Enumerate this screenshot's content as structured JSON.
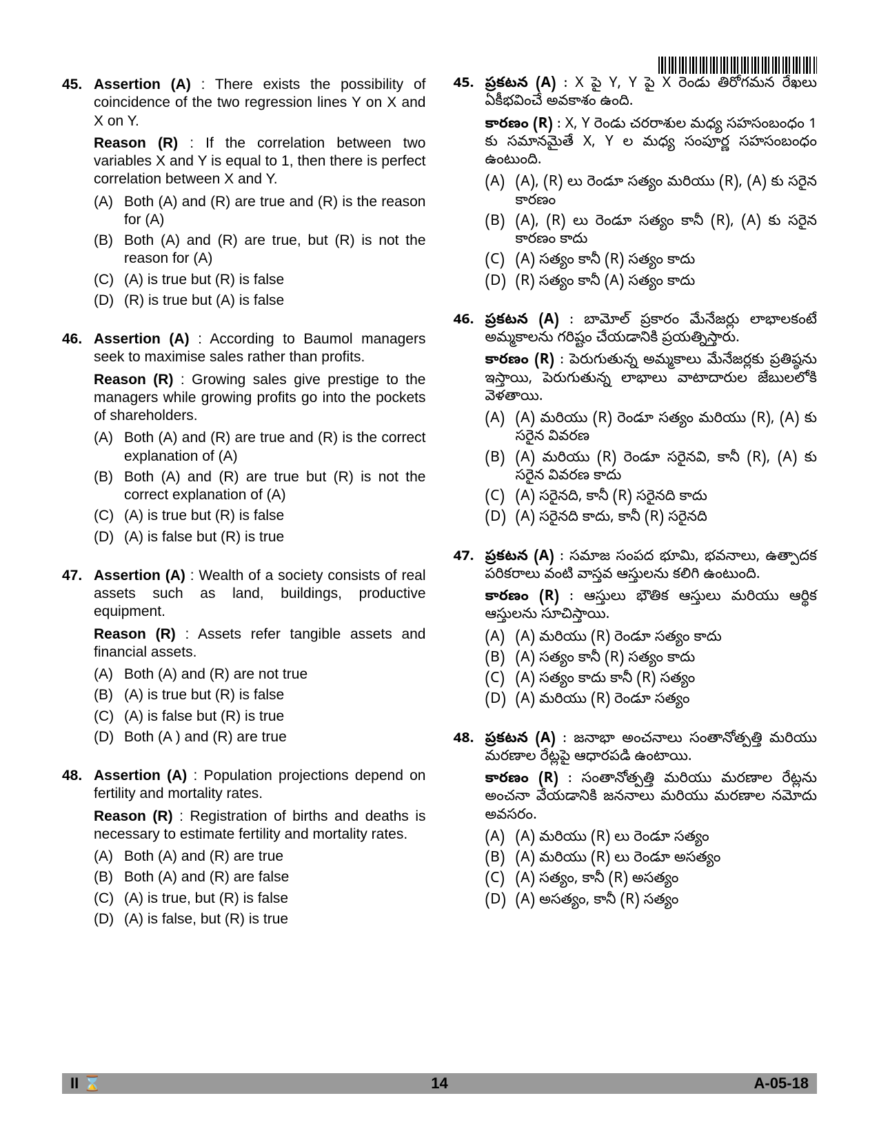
{
  "page": {
    "barcode_present": true,
    "page_number": "14",
    "footer_left": "II ⌛",
    "footer_right": "A-05-18",
    "background_color": "#ffffff",
    "text_color": "#000000",
    "footer_bg": "#9a9a9a",
    "font_size_pt": 16,
    "columns": 2
  },
  "left": [
    {
      "num": "45.",
      "assertion_label": "Assertion (A)",
      "assertion": " : There exists the possibility of coincidence of the two regression lines Y on X and X on Y.",
      "reason_label": "Reason (R)",
      "reason": " : If the correlation between two variables X and Y is equal to 1, then there is perfect correlation between X and Y.",
      "options": [
        {
          "k": "(A)",
          "t": "Both (A) and (R) are true and (R) is the reason for (A)"
        },
        {
          "k": "(B)",
          "t": "Both (A) and (R) are true, but (R) is not the reason for (A)"
        },
        {
          "k": "(C)",
          "t": "(A) is true but (R) is false"
        },
        {
          "k": "(D)",
          "t": "(R) is true but (A) is false"
        }
      ]
    },
    {
      "num": "46.",
      "assertion_label": "Assertion (A)",
      "assertion": " : According to Baumol managers seek to maximise sales rather than profits.",
      "reason_label": "Reason (R)",
      "reason": " : Growing sales give prestige to the managers while growing profits go into the pockets of shareholders.",
      "options": [
        {
          "k": "(A)",
          "t": "Both (A) and (R) are true and (R) is the correct explanation of (A)"
        },
        {
          "k": "(B)",
          "t": "Both (A) and (R) are true but (R) is not the correct explanation of (A)"
        },
        {
          "k": "(C)",
          "t": "(A) is true but (R) is false"
        },
        {
          "k": "(D)",
          "t": "(A) is false but (R) is true"
        }
      ]
    },
    {
      "num": "47.",
      "assertion_label": "Assertion (A)",
      "assertion": " : Wealth of a society consists of real assets such as land, buildings, productive equipment.",
      "reason_label": "Reason (R)",
      "reason": " : Assets refer tangible assets and financial assets.",
      "options": [
        {
          "k": "(A)",
          "t": "Both (A) and (R) are not true"
        },
        {
          "k": "(B)",
          "t": "(A) is true but (R) is false"
        },
        {
          "k": "(C)",
          "t": "(A) is false but (R) is true"
        },
        {
          "k": "(D)",
          "t": "Both (A ) and  (R) are true"
        }
      ]
    },
    {
      "num": "48.",
      "assertion_label": "Assertion (A)",
      "assertion": " : Population projections depend on fertility and mortality rates.",
      "reason_label": "Reason (R)",
      "reason": " : Registration of births and deaths is necessary to estimate fertility and mortality rates.",
      "options": [
        {
          "k": "(A)",
          "t": "Both (A) and (R) are true"
        },
        {
          "k": "(B)",
          "t": "Both (A) and (R) are false"
        },
        {
          "k": "(C)",
          "t": "(A) is true, but (R) is false"
        },
        {
          "k": "(D)",
          "t": "(A) is false, but (R) is true"
        }
      ]
    }
  ],
  "right": [
    {
      "num": "45.",
      "assertion_label": "ప్రకటన (A)",
      "assertion": " : X పై Y, Y పై X రెండు తిరోగమన రేఖలు ఏకీభవించే అవకాశం ఉంది.",
      "reason_label": "కారణం (R)",
      "reason": " : X, Y రెండు చరరాశుల మధ్య సహసంబంధం 1 కు సమానమైతే X, Y ల మధ్య సంపూర్ణ సహసంబంధం ఉంటుంది.",
      "options": [
        {
          "k": "(A)",
          "t": "(A), (R) లు రెండూ సత్యం మరియు (R), (A) కు సరైన కారణం"
        },
        {
          "k": "(B)",
          "t": "(A), (R) లు రెండూ సత్యం కానీ (R), (A) కు సరైన కారణం కాదు"
        },
        {
          "k": "(C)",
          "t": "(A) సత్యం కానీ (R) సత్యం కాదు"
        },
        {
          "k": "(D)",
          "t": "(R) సత్యం కానీ (A) సత్యం కాదు"
        }
      ]
    },
    {
      "num": "46.",
      "assertion_label": "ప్రకటన (A)",
      "assertion": " : బామోల్ ప్రకారం మేనేజర్లు లాభాలకంటే అమ్మకాలను గరిష్టం చేయడానికి ప్రయత్నిస్తారు.",
      "reason_label": "కారణం (R)",
      "reason": " : పెరుగుతున్న అమ్మకాలు మేనేజర్లకు ప్రతిష్ఠను ఇస్తాయి, పెరుగుతున్న లాభాలు వాటాదారుల జేబులలోకి వెళతాయి.",
      "options": [
        {
          "k": "(A)",
          "t": "(A) మరియు (R) రెండూ సత్యం మరియు (R), (A) కు సరైన వివరణ"
        },
        {
          "k": "(B)",
          "t": "(A) మరియు (R) రెండూ సరైనవి, కానీ (R), (A) కు సరైన వివరణ కాదు"
        },
        {
          "k": "(C)",
          "t": "(A) సరైనది, కానీ (R) సరైనది కాదు"
        },
        {
          "k": "(D)",
          "t": "(A) సరైనది కాదు, కానీ (R) సరైనది"
        }
      ]
    },
    {
      "num": "47.",
      "assertion_label": "ప్రకటన (A)",
      "assertion": " : సమాజ సంపద భూమి, భవనాలు, ఉత్పాదక పరికరాలు వంటి వాస్తవ ఆస్తులను కలిగి ఉంటుంది.",
      "reason_label": "కారణం (R)",
      "reason": " : ఆస్తులు భౌతిక ఆస్తులు మరియు ఆర్థిక ఆస్తులను సూచిస్తాయి.",
      "options": [
        {
          "k": "(A)",
          "t": "(A) మరియు (R) రెండూ సత్యం కాదు"
        },
        {
          "k": "(B)",
          "t": "(A) సత్యం కానీ (R) సత్యం కాదు"
        },
        {
          "k": "(C)",
          "t": "(A) సత్యం కాదు కానీ (R) సత్యం"
        },
        {
          "k": "(D)",
          "t": "(A) మరియు (R) రెండూ సత్యం"
        }
      ]
    },
    {
      "num": "48.",
      "assertion_label": "ప్రకటన (A)",
      "assertion": " : జనాభా అంచనాలు సంతానోత్పత్తి మరియు మరణాల రేట్లపై ఆధారపడి ఉంటాయి.",
      "reason_label": "కారణం (R)",
      "reason": " : సంతానోత్పత్తి మరియు మరణాల రేట్లను అంచనా వేయడానికి జననాలు మరియు మరణాల నమోదు అవసరం.",
      "options": [
        {
          "k": "(A)",
          "t": "(A) మరియు (R) లు రెండూ సత్యం"
        },
        {
          "k": "(B)",
          "t": "(A) మరియు (R) లు రెండూ అసత్యం"
        },
        {
          "k": "(C)",
          "t": "(A) సత్యం, కానీ (R) అసత్యం"
        },
        {
          "k": "(D)",
          "t": "(A) అసత్యం, కానీ (R) సత్యం"
        }
      ]
    }
  ]
}
